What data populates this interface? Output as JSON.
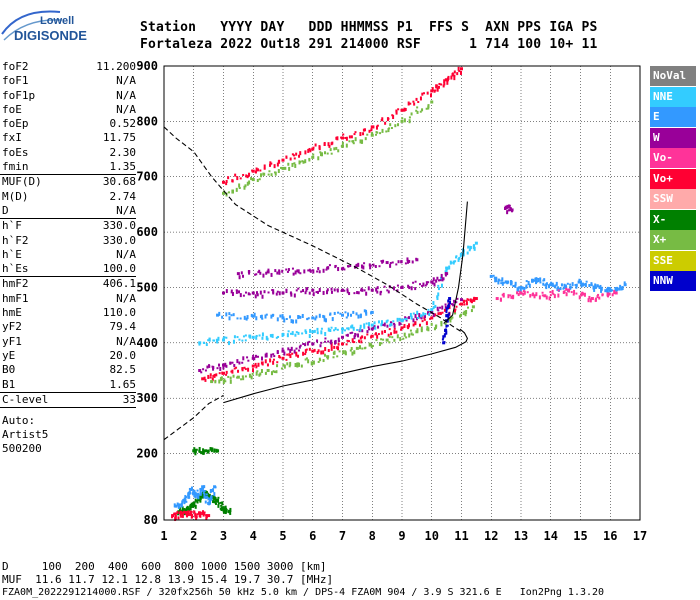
{
  "logo": {
    "line1": "Lowell",
    "line2": "DIGISONDE"
  },
  "header": {
    "line1": "Station   YYYY DAY   DDD HHMMSS P1  FFS S  AXN PPS IGA PS",
    "line2": "Fortaleza 2022 Out18 291 214000 RSF      1 714 100 10+ 11"
  },
  "params": {
    "group1": [
      {
        "k": "foF2",
        "v": "11.200"
      },
      {
        "k": "foF1",
        "v": "N/A"
      },
      {
        "k": "foF1p",
        "v": "N/A"
      },
      {
        "k": "foE",
        "v": "N/A"
      },
      {
        "k": "foEp",
        "v": "0.52"
      },
      {
        "k": "fxI",
        "v": "11.75"
      },
      {
        "k": "foEs",
        "v": "2.30"
      },
      {
        "k": "fmin",
        "v": "1.35"
      }
    ],
    "group2": [
      {
        "k": "MUF(D)",
        "v": "30.68"
      },
      {
        "k": "M(D)",
        "v": "2.74"
      },
      {
        "k": "D",
        "v": "N/A"
      }
    ],
    "group3": [
      {
        "k": "h`F",
        "v": "330.0"
      },
      {
        "k": "h`F2",
        "v": "330.0"
      },
      {
        "k": "h`E",
        "v": "N/A"
      },
      {
        "k": "h`Es",
        "v": "100.0"
      }
    ],
    "group4": [
      {
        "k": "hmF2",
        "v": "406.1"
      },
      {
        "k": "hmF1",
        "v": "N/A"
      },
      {
        "k": "hmE",
        "v": "110.0"
      },
      {
        "k": "yF2",
        "v": "79.4"
      },
      {
        "k": "yF1",
        "v": "N/A"
      },
      {
        "k": "yE",
        "v": "20.0"
      },
      {
        "k": "B0",
        "v": "82.5"
      },
      {
        "k": "B1",
        "v": "1.65"
      }
    ],
    "group5": [
      {
        "k": "C-level",
        "v": "33"
      }
    ],
    "auto": [
      "Auto:",
      "Artist5",
      "500200"
    ]
  },
  "legend": [
    {
      "label": "NoVal",
      "color": "#808080"
    },
    {
      "label": "NNE",
      "color": "#33ccff"
    },
    {
      "label": "E",
      "color": "#3399ff"
    },
    {
      "label": "W",
      "color": "#990099"
    },
    {
      "label": "Vo-",
      "color": "#ff3399"
    },
    {
      "label": "Vo+",
      "color": "#ff0033"
    },
    {
      "label": "SSW",
      "color": "#ffaaaa"
    },
    {
      "label": "X-",
      "color": "#008000"
    },
    {
      "label": "X+",
      "color": "#77bb44"
    },
    {
      "label": "SSE",
      "color": "#cccc00"
    },
    {
      "label": "NNW",
      "color": "#0000cc"
    }
  ],
  "footer": {
    "line1": "D     100  200  400  600  800 1000 1500 3000 [km]",
    "line2": "MUF  11.6 11.7 12.1 12.8 13.9 15.4 19.7 30.7 [MHz]",
    "line3": "FZA0M_2022291214000.RSF / 320fx256h 50 kHz 5.0 km / DPS-4 FZA0M 904 / 3.9 S 321.6 E   Ion2Png 1.3.20"
  },
  "chart_data": {
    "type": "scatter",
    "xlim": [
      1,
      17
    ],
    "ylim": [
      80,
      900
    ],
    "x_ticks": [
      1,
      2,
      3,
      4,
      5,
      6,
      7,
      8,
      9,
      10,
      11,
      12,
      13,
      14,
      15,
      16,
      17
    ],
    "y_ticks": [
      80,
      200,
      300,
      400,
      500,
      600,
      700,
      800,
      900
    ],
    "grid": true,
    "legend_position": "right",
    "series": [
      {
        "color": "#ff0033",
        "points": [
          [
            2.3,
            335
          ],
          [
            3,
            345
          ],
          [
            4,
            358
          ],
          [
            5,
            372
          ],
          [
            6,
            385
          ],
          [
            7,
            398
          ],
          [
            8,
            412
          ],
          [
            9,
            427
          ],
          [
            10,
            445
          ],
          [
            11,
            470
          ],
          [
            11.5,
            480
          ]
        ]
      },
      {
        "color": "#990099",
        "points": [
          [
            2.2,
            350
          ],
          [
            3,
            360
          ],
          [
            4,
            372
          ],
          [
            5,
            385
          ],
          [
            6,
            398
          ],
          [
            7,
            410
          ],
          [
            8,
            425
          ],
          [
            9,
            440
          ],
          [
            10,
            455
          ],
          [
            11,
            478
          ]
        ]
      },
      {
        "color": "#77bb44",
        "points": [
          [
            2.6,
            330
          ],
          [
            3.5,
            338
          ],
          [
            4.5,
            350
          ],
          [
            5.5,
            362
          ],
          [
            6.5,
            375
          ],
          [
            7.5,
            390
          ],
          [
            8.5,
            405
          ],
          [
            9.5,
            420
          ],
          [
            10.5,
            440
          ],
          [
            11.4,
            465
          ]
        ]
      },
      {
        "color": "#33ccff",
        "points": [
          [
            2.2,
            400
          ],
          [
            3,
            405
          ],
          [
            4,
            410
          ],
          [
            5,
            415
          ],
          [
            6,
            420
          ],
          [
            7,
            425
          ],
          [
            8,
            432
          ],
          [
            9,
            440
          ],
          [
            10,
            460
          ],
          [
            10.5,
            535
          ],
          [
            11,
            560
          ],
          [
            11.5,
            580
          ]
        ]
      },
      {
        "color": "#3399ff",
        "points": [
          [
            2.8,
            450
          ],
          [
            4,
            448
          ],
          [
            5,
            445
          ],
          [
            6,
            445
          ],
          [
            7,
            450
          ],
          [
            8,
            455
          ]
        ]
      },
      {
        "color": "#990099",
        "points": [
          [
            3,
            490
          ],
          [
            4,
            490
          ],
          [
            5,
            490
          ],
          [
            6,
            495
          ],
          [
            7,
            495
          ],
          [
            8,
            495
          ],
          [
            9,
            500
          ],
          [
            10,
            510
          ],
          [
            10.5,
            525
          ]
        ]
      },
      {
        "color": "#990099",
        "points": [
          [
            3.5,
            525
          ],
          [
            4.5,
            528
          ],
          [
            5.5,
            530
          ],
          [
            6.5,
            535
          ],
          [
            7.5,
            540
          ],
          [
            8.5,
            545
          ],
          [
            9.5,
            550
          ]
        ]
      },
      {
        "color": "#ff0033",
        "points": [
          [
            3,
            690
          ],
          [
            4,
            710
          ],
          [
            5,
            730
          ],
          [
            6,
            750
          ],
          [
            7,
            770
          ],
          [
            8,
            790
          ],
          [
            9,
            820
          ],
          [
            10,
            855
          ],
          [
            10.5,
            875
          ],
          [
            11,
            895
          ]
        ]
      },
      {
        "color": "#77bb44",
        "points": [
          [
            3,
            670
          ],
          [
            4,
            695
          ],
          [
            5,
            715
          ],
          [
            6,
            735
          ],
          [
            7,
            755
          ],
          [
            8,
            775
          ],
          [
            9,
            800
          ],
          [
            10,
            835
          ]
        ]
      },
      {
        "color": "#3399ff",
        "points": [
          [
            12,
            520
          ],
          [
            12.5,
            510
          ],
          [
            13,
            500
          ],
          [
            13.5,
            515
          ],
          [
            14,
            505
          ],
          [
            14.5,
            500
          ],
          [
            15,
            510
          ],
          [
            15.5,
            500
          ],
          [
            16,
            495
          ],
          [
            16.5,
            505
          ]
        ]
      },
      {
        "color": "#ff3399",
        "points": [
          [
            12.2,
            480
          ],
          [
            13,
            490
          ],
          [
            13.8,
            485
          ],
          [
            14.6,
            495
          ],
          [
            15.4,
            480
          ],
          [
            16.2,
            490
          ]
        ]
      },
      {
        "color": "#008000",
        "points": [
          [
            1.5,
            95
          ],
          [
            1.8,
            100
          ],
          [
            2,
            110
          ],
          [
            2.2,
            120
          ],
          [
            2.4,
            130
          ],
          [
            2.6,
            120
          ],
          [
            2.8,
            115
          ],
          [
            3,
            100
          ],
          [
            3.2,
            95
          ]
        ]
      },
      {
        "color": "#3399ff",
        "points": [
          [
            1.4,
            105
          ],
          [
            1.7,
            115
          ],
          [
            1.9,
            135
          ],
          [
            2.1,
            125
          ],
          [
            2.3,
            140
          ],
          [
            2.5,
            110
          ],
          [
            2.7,
            140
          ]
        ]
      },
      {
        "color": "#ff0033",
        "points": [
          [
            1.3,
            88
          ],
          [
            1.6,
            92
          ],
          [
            1.9,
            90
          ],
          [
            2.2,
            92
          ],
          [
            2.5,
            88
          ]
        ]
      },
      {
        "color": "#008000",
        "points": [
          [
            2,
            205
          ],
          [
            2.4,
            205
          ],
          [
            2.8,
            205
          ]
        ]
      },
      {
        "color": "#990099",
        "points": [
          [
            12.5,
            645
          ],
          [
            12.7,
            640
          ]
        ]
      },
      {
        "color": "#0000cc",
        "points": [
          [
            10.4,
            400
          ],
          [
            10.5,
            440
          ],
          [
            10.6,
            480
          ]
        ]
      }
    ],
    "lines": [
      {
        "style": "dashed",
        "points": [
          [
            1,
            790
          ],
          [
            1.4,
            770
          ],
          [
            2,
            745
          ],
          [
            2.6,
            700
          ],
          [
            3.4,
            650
          ],
          [
            4.5,
            612
          ],
          [
            6,
            575
          ],
          [
            7.5,
            535
          ],
          [
            8.5,
            505
          ],
          [
            9.5,
            470
          ],
          [
            10.3,
            445
          ],
          [
            10.7,
            430
          ],
          [
            11,
            420
          ]
        ]
      },
      {
        "style": "dashed",
        "points": [
          [
            1,
            225
          ],
          [
            1.5,
            245
          ],
          [
            2,
            265
          ],
          [
            2.5,
            290
          ],
          [
            3,
            305
          ]
        ]
      },
      {
        "style": "solid",
        "points": [
          [
            3,
            292
          ],
          [
            4,
            308
          ],
          [
            5,
            322
          ],
          [
            6,
            333
          ],
          [
            7,
            345
          ],
          [
            8,
            357
          ],
          [
            9,
            367
          ],
          [
            10,
            380
          ],
          [
            10.8,
            392
          ],
          [
            11.15,
            402
          ],
          [
            11.2,
            408
          ],
          [
            11.1,
            418
          ],
          [
            10.95,
            425
          ]
        ]
      },
      {
        "style": "solid",
        "points": [
          [
            10.4,
            435
          ],
          [
            10.7,
            450
          ],
          [
            10.9,
            500
          ],
          [
            11.05,
            560
          ],
          [
            11.2,
            655
          ]
        ]
      }
    ]
  }
}
